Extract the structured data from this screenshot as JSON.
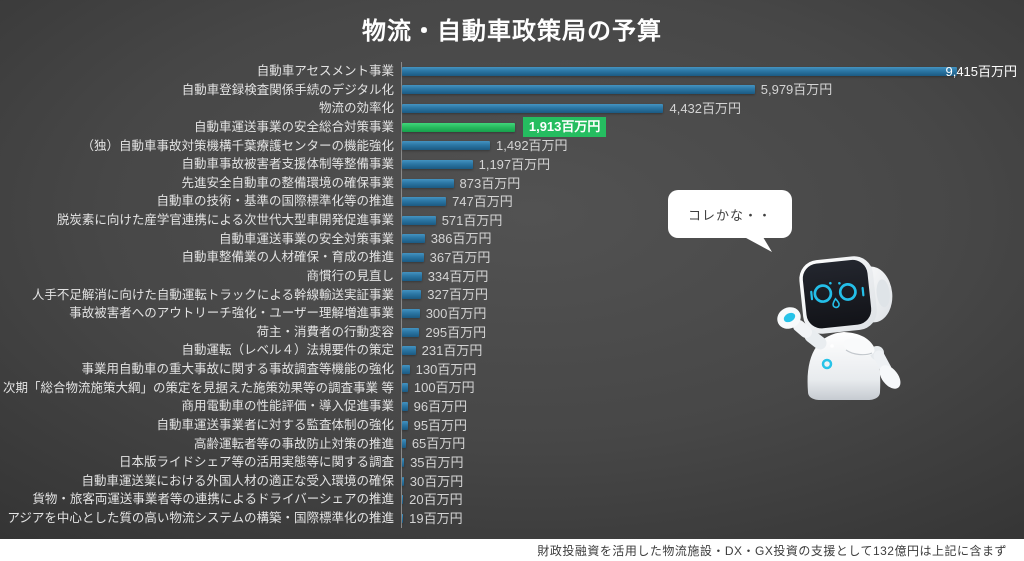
{
  "title": "物流・自動車政策局の予算",
  "footer": "財政投融資を活用した物流施設・DX・GX投資の支援として132億円は上記に含まず",
  "robot": {
    "speech": "コレかな・・"
  },
  "colors": {
    "bar": "#2b76a4",
    "highlight_bar": "#27b95e",
    "highlight_label_bg": "#25bd60",
    "background": "#3a3a3a",
    "title_text": "#ffffff",
    "value_text": "#d4d4d4",
    "footer_bg": "#ffffff"
  },
  "chart_data": {
    "type": "bar",
    "orientation": "horizontal",
    "title": "物流・自動車政策局の予算",
    "unit": "百万円",
    "xlim": [
      0,
      9800
    ],
    "highlight_index": 3,
    "categories": [
      "自動車アセスメント事業",
      "自動車登録検査関係手続のデジタル化",
      "物流の効率化",
      "自動車運送事業の安全総合対策事業",
      "（独）自動車事故対策機構千葉療護センターの機能強化",
      "自動車事故被害者支援体制等整備事業",
      "先進安全自動車の整備環境の確保事業",
      "自動車の技術・基準の国際標準化等の推進",
      "脱炭素に向けた産学官連携による次世代大型車開発促進事業",
      "自動車運送事業の安全対策事業",
      "自動車整備業の人材確保・育成の推進",
      "商慣行の見直し",
      "人手不足解消に向けた自動運転トラックによる幹線輸送実証事業",
      "事故被害者へのアウトリーチ強化・ユーザー理解増進事業",
      "荷主・消費者の行動変容",
      "自動運転（レベル４）法規要件の策定",
      "事業用自動車の重大事故に関する事故調査等機能の強化",
      "次期「総合物流施策大綱」の策定を見据えた施策効果等の調査事業 等",
      "商用電動車の性能評価・導入促進事業",
      "自動車運送事業者に対する監査体制の強化",
      "高齢運転者等の事故防止対策の推進",
      "日本版ライドシェア等の活用実態等に関する調査",
      "自動車運送業における外国人材の適正な受入環境の確保",
      "貨物・旅客両運送事業者等の連携によるドライバーシェアの推進",
      "アジアを中心とした質の高い物流システムの構築・国際標準化の推進"
    ],
    "values": [
      9415,
      5979,
      4432,
      1913,
      1492,
      1197,
      873,
      747,
      571,
      386,
      367,
      334,
      327,
      300,
      295,
      231,
      130,
      100,
      96,
      95,
      65,
      35,
      30,
      20,
      19
    ],
    "value_labels": [
      "9,415百万円",
      "5,979百万円",
      "4,432百万円",
      "1,913百万円",
      "1,492百万円",
      "1,197百万円",
      "873百万円",
      "747百万円",
      "571百万円",
      "386百万円",
      "367百万円",
      "334百万円",
      "327百万円",
      "300百万円",
      "295百万円",
      "231百万円",
      "130百万円",
      "100百万円",
      "96百万円",
      "95百万円",
      "65百万円",
      "35百万円",
      "30百万円",
      "20百万円",
      "19百万円"
    ]
  }
}
